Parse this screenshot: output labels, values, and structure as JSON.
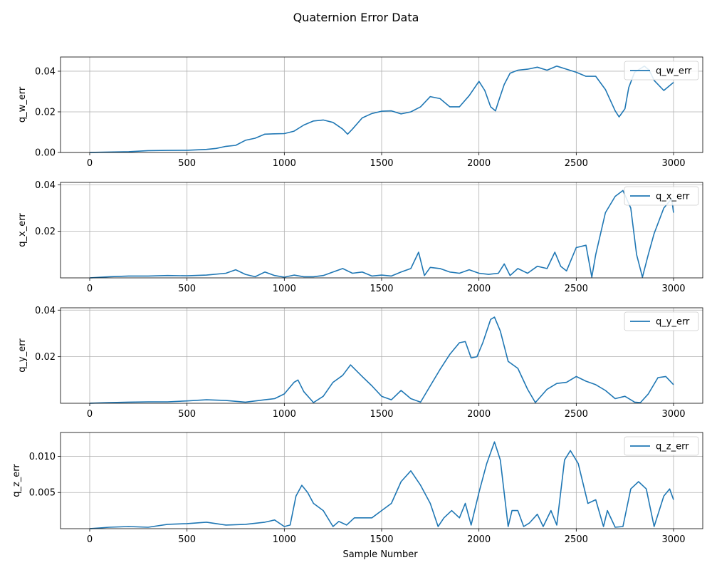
{
  "chart_data": {
    "type": "line",
    "title": "Quaternion Error Data",
    "xlabel": "Sample Number",
    "xlim": [
      -150,
      3150
    ],
    "x_ticks": [
      0,
      500,
      1000,
      1500,
      2000,
      2500,
      3000
    ],
    "x_tick_labels": [
      "0",
      "500",
      "1000",
      "1500",
      "2000",
      "2500",
      "3000"
    ],
    "grid": true,
    "line_color": "#1f77b4",
    "subplots": [
      {
        "ylabel": "q_w_err",
        "legend": "q_w_err",
        "legend_position": "upper-right",
        "ylim": [
          0,
          0.047
        ],
        "y_ticks": [
          0,
          0.02,
          0.04
        ],
        "y_tick_labels": [
          "0.00",
          "0.02",
          "0.04"
        ],
        "x": [
          0,
          100,
          200,
          300,
          400,
          500,
          600,
          650,
          700,
          750,
          800,
          850,
          900,
          950,
          1000,
          1050,
          1100,
          1150,
          1200,
          1250,
          1300,
          1325,
          1350,
          1400,
          1450,
          1500,
          1550,
          1600,
          1650,
          1700,
          1750,
          1800,
          1850,
          1900,
          1950,
          2000,
          2030,
          2060,
          2085,
          2100,
          2130,
          2160,
          2200,
          2250,
          2300,
          2350,
          2400,
          2450,
          2500,
          2550,
          2600,
          2650,
          2700,
          2720,
          2750,
          2770,
          2800,
          2850,
          2875,
          2900,
          2950,
          3000
        ],
        "y": [
          0,
          0.0002,
          0.0004,
          0.0009,
          0.001,
          0.0011,
          0.0015,
          0.002,
          0.003,
          0.0035,
          0.006,
          0.007,
          0.009,
          0.0092,
          0.0093,
          0.0105,
          0.0135,
          0.0155,
          0.016,
          0.0148,
          0.0115,
          0.009,
          0.0115,
          0.017,
          0.0192,
          0.0203,
          0.0205,
          0.019,
          0.02,
          0.0225,
          0.0275,
          0.0265,
          0.0225,
          0.0225,
          0.028,
          0.035,
          0.0305,
          0.0225,
          0.0205,
          0.025,
          0.0335,
          0.039,
          0.0405,
          0.041,
          0.042,
          0.0405,
          0.0425,
          0.041,
          0.0395,
          0.0375,
          0.0375,
          0.031,
          0.0205,
          0.0175,
          0.0215,
          0.032,
          0.0395,
          0.0425,
          0.0405,
          0.0355,
          0.0305,
          0.0345
        ]
      },
      {
        "ylabel": "q_x_err",
        "legend": "q_x_err",
        "legend_position": "upper-right",
        "ylim": [
          0,
          0.041
        ],
        "y_ticks": [
          0.02,
          0.04
        ],
        "y_tick_labels": [
          "0.02",
          "0.04"
        ],
        "x": [
          0,
          100,
          200,
          300,
          400,
          500,
          600,
          700,
          750,
          800,
          850,
          900,
          950,
          1000,
          1050,
          1100,
          1150,
          1200,
          1250,
          1300,
          1350,
          1400,
          1450,
          1500,
          1550,
          1600,
          1650,
          1690,
          1720,
          1750,
          1800,
          1850,
          1900,
          1950,
          2000,
          2050,
          2100,
          2130,
          2160,
          2200,
          2250,
          2300,
          2350,
          2390,
          2420,
          2450,
          2500,
          2550,
          2580,
          2600,
          2650,
          2700,
          2740,
          2780,
          2810,
          2840,
          2870,
          2900,
          2950,
          2990,
          3000
        ],
        "y": [
          0,
          0.0005,
          0.0008,
          0.0008,
          0.001,
          0.0009,
          0.0012,
          0.002,
          0.0035,
          0.0015,
          0.0005,
          0.0025,
          0.001,
          0.0003,
          0.0012,
          0.0005,
          0.0005,
          0.001,
          0.0025,
          0.004,
          0.002,
          0.0025,
          0.0008,
          0.0012,
          0.0008,
          0.0025,
          0.004,
          0.011,
          0.001,
          0.0045,
          0.004,
          0.0025,
          0.002,
          0.0035,
          0.002,
          0.0015,
          0.002,
          0.006,
          0.001,
          0.004,
          0.002,
          0.005,
          0.004,
          0.011,
          0.005,
          0.003,
          0.013,
          0.014,
          0.0003,
          0.01,
          0.028,
          0.035,
          0.0375,
          0.03,
          0.01,
          0.0003,
          0.01,
          0.019,
          0.03,
          0.034,
          0.028
        ]
      },
      {
        "ylabel": "q_y_err",
        "legend": "q_y_err",
        "legend_position": "upper-right",
        "ylim": [
          0,
          0.041
        ],
        "y_ticks": [
          0.02,
          0.04
        ],
        "y_tick_labels": [
          "0.02",
          "0.04"
        ],
        "x": [
          0,
          100,
          200,
          300,
          400,
          500,
          600,
          700,
          800,
          900,
          950,
          1000,
          1050,
          1070,
          1100,
          1150,
          1200,
          1250,
          1300,
          1340,
          1400,
          1450,
          1500,
          1550,
          1600,
          1650,
          1700,
          1750,
          1800,
          1850,
          1900,
          1930,
          1960,
          1990,
          2020,
          2060,
          2080,
          2110,
          2150,
          2200,
          2250,
          2290,
          2350,
          2400,
          2450,
          2500,
          2550,
          2600,
          2650,
          2700,
          2750,
          2800,
          2830,
          2870,
          2920,
          2960,
          3000
        ],
        "y": [
          0,
          0.0003,
          0.0005,
          0.0006,
          0.0006,
          0.001,
          0.0015,
          0.0012,
          0.0005,
          0.0015,
          0.002,
          0.004,
          0.009,
          0.01,
          0.005,
          0.0003,
          0.003,
          0.009,
          0.012,
          0.0165,
          0.0115,
          0.0075,
          0.003,
          0.0015,
          0.0055,
          0.002,
          0.0005,
          0.0075,
          0.0145,
          0.021,
          0.026,
          0.0265,
          0.0195,
          0.02,
          0.026,
          0.036,
          0.037,
          0.031,
          0.018,
          0.015,
          0.006,
          0.0003,
          0.006,
          0.0085,
          0.009,
          0.0115,
          0.0095,
          0.008,
          0.0055,
          0.002,
          0.003,
          0.0005,
          0.0003,
          0.004,
          0.011,
          0.0115,
          0.008
        ]
      },
      {
        "ylabel": "q_z_err",
        "legend": "q_z_err",
        "legend_position": "upper-right",
        "ylim": [
          0,
          0.0133
        ],
        "y_ticks": [
          0.005,
          0.01
        ],
        "y_tick_labels": [
          "0.005",
          "0.010"
        ],
        "x": [
          0,
          100,
          200,
          300,
          400,
          500,
          600,
          700,
          800,
          900,
          950,
          1000,
          1030,
          1060,
          1090,
          1120,
          1150,
          1200,
          1250,
          1280,
          1320,
          1360,
          1400,
          1450,
          1500,
          1550,
          1600,
          1650,
          1700,
          1750,
          1790,
          1820,
          1860,
          1900,
          1930,
          1960,
          2000,
          2040,
          2080,
          2110,
          2150,
          2170,
          2200,
          2230,
          2260,
          2300,
          2330,
          2370,
          2400,
          2440,
          2470,
          2510,
          2560,
          2600,
          2640,
          2660,
          2700,
          2740,
          2780,
          2820,
          2860,
          2900,
          2950,
          2980,
          3000
        ],
        "y": [
          0,
          0.0002,
          0.0003,
          0.0002,
          0.0006,
          0.0007,
          0.0009,
          0.0005,
          0.0006,
          0.0009,
          0.0012,
          0.0003,
          0.0005,
          0.0045,
          0.006,
          0.005,
          0.0035,
          0.0025,
          0.0003,
          0.001,
          0.0005,
          0.0015,
          0.0015,
          0.0015,
          0.0025,
          0.0035,
          0.0065,
          0.008,
          0.006,
          0.0035,
          0.0003,
          0.0015,
          0.0025,
          0.0015,
          0.0035,
          0.0005,
          0.005,
          0.009,
          0.012,
          0.0095,
          0.0003,
          0.0025,
          0.0025,
          0.0003,
          0.0008,
          0.002,
          0.0003,
          0.0025,
          0.0005,
          0.0095,
          0.0108,
          0.009,
          0.0035,
          0.004,
          0.0003,
          0.0025,
          0.0002,
          0.0003,
          0.0055,
          0.0065,
          0.0055,
          0.0003,
          0.0045,
          0.0055,
          0.004
        ]
      }
    ]
  }
}
